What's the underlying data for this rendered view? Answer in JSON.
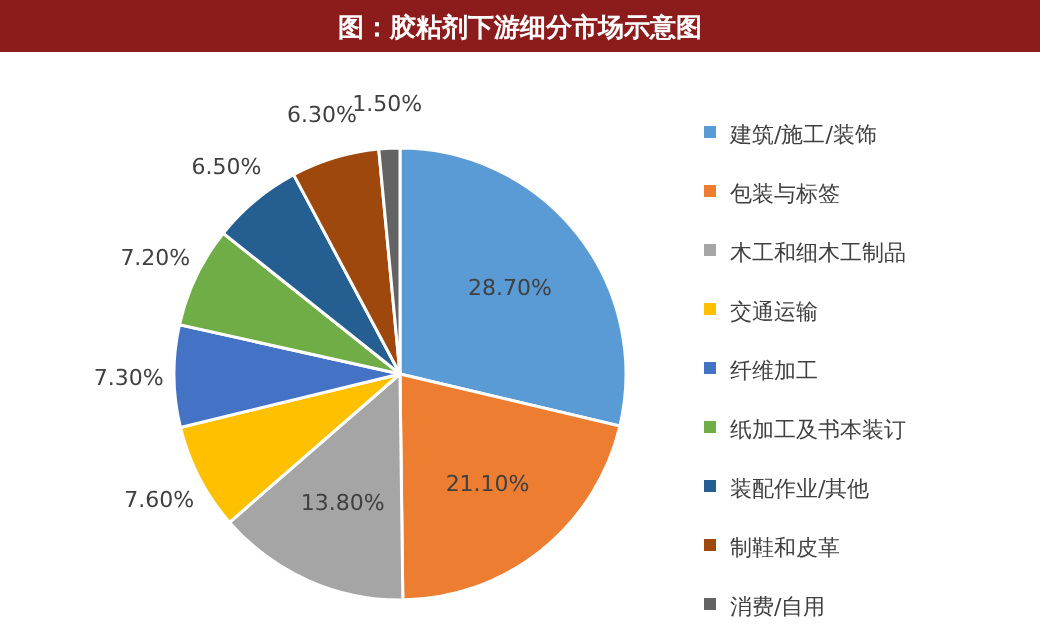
{
  "chart_data": {
    "type": "pie",
    "title": "图：胶粘剂下游细分市场示意图",
    "categories": [
      "建筑/施工/装饰",
      "包装与标签",
      "木工和细木工制品",
      "交通运输",
      "纤维加工",
      "纸加工及书本装订",
      "装配作业/其他",
      "制鞋和皮革",
      "消费/自用"
    ],
    "values": [
      28.7,
      21.1,
      13.8,
      7.6,
      7.3,
      7.2,
      6.5,
      6.3,
      1.5
    ],
    "colors": [
      "#5b9bd5",
      "#ed7d31",
      "#a5a5a5",
      "#ffc000",
      "#4472c4",
      "#70ad47",
      "#255e91",
      "#9e480e",
      "#636363"
    ],
    "value_labels": [
      "28.70%",
      "21.10%",
      "13.80%",
      "7.60%",
      "7.30%",
      "7.20%",
      "6.50%",
      "6.30%",
      "1.50%"
    ],
    "legend": "right"
  }
}
